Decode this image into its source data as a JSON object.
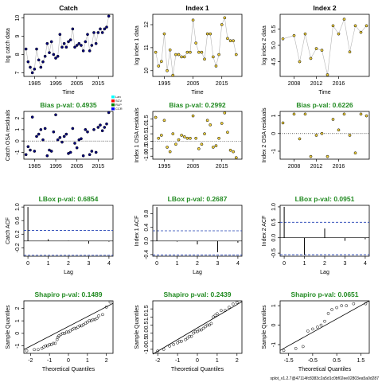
{
  "footer": "splot_v1.2.7@47114fc8383c2a5d1c0bf02ee02803ea5a0d287",
  "chart_data": [
    {
      "type": "scatter",
      "row": 0,
      "col": 0,
      "title": "Catch",
      "title_color": "#000000",
      "xlabel": "Time",
      "ylabel": "log catch data",
      "xlim": [
        1980,
        2022
      ],
      "ylim": [
        6.8,
        10.2
      ],
      "xticks": [
        1985,
        1995,
        2005,
        2015
      ],
      "yticks": [
        7.0,
        8.0,
        9.0,
        10.0
      ],
      "connect": true,
      "point_fill": "#000080",
      "x": [
        1981,
        1982,
        1983,
        1984,
        1985,
        1986,
        1987,
        1988,
        1989,
        1990,
        1991,
        1992,
        1993,
        1994,
        1995,
        1996,
        1997,
        1998,
        1999,
        2000,
        2001,
        2002,
        2003,
        2004,
        2005,
        2006,
        2007,
        2008,
        2009,
        2010,
        2011,
        2012,
        2013,
        2014,
        2015,
        2016,
        2017,
        2018,
        2019,
        2020
      ],
      "y": [
        8.3,
        7.6,
        7.3,
        7.0,
        7.2,
        8.3,
        7.7,
        7.3,
        7.6,
        7.9,
        8.6,
        8.1,
        8.7,
        8.0,
        7.8,
        7.9,
        9.1,
        8.4,
        8.6,
        8.4,
        8.7,
        8.8,
        9.4,
        8.4,
        8.5,
        8.6,
        8.5,
        8.2,
        8.7,
        9.1,
        8.2,
        8.5,
        9.2,
        8.6,
        9.2,
        9.4,
        9.2,
        9.4,
        9.5,
        10.1
      ]
    },
    {
      "type": "scatter",
      "row": 0,
      "col": 1,
      "title": "Index 1",
      "title_color": "#000000",
      "xlabel": "Time",
      "ylabel": "log index 1 data",
      "xlim": [
        1991,
        2022
      ],
      "ylim": [
        9.75,
        12.45
      ],
      "xticks": [
        1995,
        2005,
        2015
      ],
      "yticks": [
        10.0,
        11.0,
        12.0
      ],
      "connect": true,
      "point_fill": "#f2d23c",
      "x": [
        1992,
        1993,
        1994,
        1995,
        1996,
        1997,
        1998,
        1999,
        2000,
        2001,
        2002,
        2003,
        2004,
        2005,
        2006,
        2007,
        2008,
        2009,
        2010,
        2011,
        2012,
        2013,
        2014,
        2015,
        2016,
        2017,
        2018,
        2019,
        2020
      ],
      "y": [
        10.8,
        10.2,
        10.4,
        11.6,
        10.0,
        10.9,
        9.8,
        10.7,
        10.7,
        10.6,
        10.6,
        10.8,
        10.8,
        12.2,
        11.2,
        10.8,
        10.8,
        10.5,
        11.6,
        11.6,
        10.6,
        10.2,
        10.7,
        12.0,
        12.3,
        11.4,
        11.3,
        11.3,
        10.7
      ]
    },
    {
      "type": "scatter",
      "row": 0,
      "col": 2,
      "title": "Index 2",
      "title_color": "#000000",
      "xlabel": "Time",
      "ylabel": "log index 2 data",
      "xlim": [
        2005.5,
        2021.5
      ],
      "ylim": [
        4.05,
        5.95
      ],
      "xticks": [
        2008,
        2012,
        2016
      ],
      "yticks": [
        4.5,
        5.0,
        5.5
      ],
      "connect": true,
      "point_fill": "#f2d23c",
      "x": [
        2006,
        2008,
        2009,
        2010,
        2011,
        2012,
        2013,
        2014,
        2015,
        2016,
        2017,
        2018,
        2019,
        2020,
        2021
      ],
      "y": [
        5.2,
        5.3,
        4.5,
        5.35,
        4.6,
        4.9,
        4.85,
        4.1,
        5.6,
        5.35,
        5.8,
        4.8,
        5.6,
        5.4,
        5.6
      ]
    },
    {
      "type": "scatter",
      "row": 1,
      "col": 0,
      "title": "Bias p-val: 0.4935",
      "title_color": "#228b22",
      "xlabel": "",
      "ylabel": "Catch OSA residuals",
      "xlim": [
        1980,
        2022
      ],
      "ylim": [
        -1.6,
        2.6
      ],
      "xticks": [
        1985,
        1995,
        2005,
        2015
      ],
      "yticks": [
        -1,
        0,
        1,
        2
      ],
      "connect": false,
      "point_fill": "#000080",
      "hline": 0,
      "hline_style": "dotted",
      "legend": [
        "Lan",
        "SCV",
        "RLP",
        "CCR"
      ],
      "legend_colors": [
        "#00ffff",
        "#ff0000",
        "#008000",
        "#0000ff"
      ],
      "x": [
        1981,
        1982,
        1983,
        1984,
        1985,
        1986,
        1987,
        1988,
        1989,
        1990,
        1991,
        1992,
        1993,
        1994,
        1995,
        1996,
        1997,
        1998,
        1999,
        2000,
        2001,
        2002,
        2003,
        2004,
        2005,
        2006,
        2007,
        2008,
        2009,
        2010,
        2011,
        2012,
        2013,
        2014,
        2015,
        2016,
        2017,
        2018,
        2019,
        2020
      ],
      "y": [
        -1.2,
        -0.5,
        -0.8,
        2.1,
        -0.9,
        0.4,
        0.6,
        1.0,
        0.1,
        1.1,
        -1.3,
        -0.8,
        -0.9,
        0.8,
        2.3,
        0.1,
        0.3,
        -0.1,
        0.4,
        0.6,
        -1.1,
        -1.0,
        1.1,
        -0.2,
        -0.6,
        0.1,
        0.2,
        -1.3,
        1.0,
        0.8,
        -1.2,
        -0.9,
        1.0,
        -1.0,
        1.2,
        1.4,
        0.9,
        1.2,
        1.5,
        2.5
      ]
    },
    {
      "type": "scatter",
      "row": 1,
      "col": 1,
      "title": "Bias p-val: 0.2992",
      "title_color": "#228b22",
      "xlabel": "",
      "ylabel": "Index 1 OSA residuals",
      "xlim": [
        1991,
        2022
      ],
      "ylim": [
        -1.2,
        2.0
      ],
      "xticks": [
        1995,
        2005,
        2015
      ],
      "yticks": [
        -1.0,
        -0.5,
        0.0,
        0.5,
        1.0,
        1.5
      ],
      "connect": false,
      "point_fill": "#f2d23c",
      "hline": 0,
      "hline_style": "dotted",
      "x": [
        1992,
        1993,
        1994,
        1995,
        1996,
        1997,
        1998,
        1999,
        2000,
        2001,
        2002,
        2003,
        2004,
        2005,
        2006,
        2007,
        2008,
        2009,
        2010,
        2011,
        2012,
        2013,
        2014,
        2015,
        2016,
        2017,
        2018,
        2019,
        2020
      ],
      "y": [
        1.6,
        0.2,
        0.4,
        1.4,
        -0.4,
        -0.7,
        0.5,
        -0.2,
        0.1,
        0.4,
        0.3,
        0.2,
        0.2,
        1.7,
        0.2,
        -0.5,
        -0.2,
        0.5,
        1.4,
        1.1,
        -0.4,
        -0.3,
        0.2,
        1.2,
        1.9,
        0.6,
        -0.6,
        -0.7,
        -1.1
      ]
    },
    {
      "type": "scatter",
      "row": 1,
      "col": 2,
      "title": "Bias p-val: 0.6226",
      "title_color": "#228b22",
      "xlabel": "",
      "ylabel": "Index 2 OSA residuals",
      "xlim": [
        2005.5,
        2021.5
      ],
      "ylim": [
        -1.45,
        1.25
      ],
      "xticks": [
        2008,
        2012,
        2016
      ],
      "yticks": [
        -1,
        0,
        1
      ],
      "connect": false,
      "point_fill": "#f2d23c",
      "hline": 0,
      "hline_style": "dotted",
      "x": [
        2006,
        2008,
        2009,
        2010,
        2011,
        2012,
        2013,
        2014,
        2015,
        2016,
        2017,
        2018,
        2019,
        2020,
        2021
      ],
      "y": [
        0.6,
        1.1,
        -0.3,
        1.1,
        -1.3,
        -0.1,
        0.0,
        -1.3,
        0.8,
        0.2,
        1.1,
        -0.1,
        -1.1,
        1.1,
        1.0
      ]
    },
    {
      "type": "bar",
      "subtype": "acf",
      "row": 2,
      "col": 0,
      "title": "LBox p-val: 0.6854",
      "title_color": "#228b22",
      "xlabel": "Lag",
      "ylabel": "Catch ACF",
      "xlim": [
        -0.2,
        4.2
      ],
      "ylim": [
        -0.45,
        1.05
      ],
      "xticks": [
        0,
        1,
        2,
        3,
        4
      ],
      "yticks": [
        -0.2,
        0.2,
        0.6,
        1.0
      ],
      "lags": [
        0,
        1,
        2,
        3,
        4
      ],
      "values": [
        1.0,
        0.05,
        0.01,
        -0.08,
        -0.02
      ],
      "ci": [
        0.31,
        -0.42
      ]
    },
    {
      "type": "bar",
      "subtype": "acf",
      "row": 2,
      "col": 1,
      "title": "LBox p-val: 0.2687",
      "title_color": "#228b22",
      "xlabel": "Lag",
      "ylabel": "Index 1 ACF",
      "xlim": [
        -0.2,
        4.2
      ],
      "ylim": [
        -0.45,
        1.05
      ],
      "xticks": [
        0,
        1,
        2,
        3,
        4
      ],
      "yticks": [
        -0.4,
        0.0,
        0.4,
        0.8
      ],
      "lags": [
        0,
        1,
        2,
        3,
        4
      ],
      "values": [
        1.0,
        -0.02,
        -0.1,
        -0.33,
        -0.05
      ],
      "ci": [
        0.3,
        -0.41
      ]
    },
    {
      "type": "bar",
      "subtype": "acf",
      "row": 2,
      "col": 2,
      "title": "LBox p-val: 0.0951",
      "title_color": "#228b22",
      "xlabel": "Lag",
      "ylabel": "Index 2 ACF",
      "xlim": [
        -0.2,
        4.2
      ],
      "ylim": [
        -0.6,
        1.05
      ],
      "xticks": [
        0,
        1,
        2,
        3,
        4
      ],
      "yticks": [
        -0.5,
        0.0,
        0.5,
        1.0
      ],
      "lags": [
        0,
        1,
        2,
        3,
        4
      ],
      "values": [
        1.0,
        -0.55,
        0.3,
        -0.1,
        -0.05
      ],
      "ci": [
        0.5,
        -0.55
      ]
    },
    {
      "type": "scatter",
      "subtype": "qq",
      "row": 3,
      "col": 0,
      "title": "Shapiro p-val: 0.1489",
      "title_color": "#228b22",
      "xlabel": "Theoretical Quantiles",
      "ylabel": "Sample Quantiles",
      "xlim": [
        -2.35,
        2.35
      ],
      "ylim": [
        -1.6,
        2.6
      ],
      "xticks": [
        -2,
        -1,
        0,
        1,
        2
      ],
      "yticks": [
        -1,
        0,
        1,
        2
      ],
      "line": [
        [
          -2.35,
          -1.3
        ],
        [
          2.35,
          2.4
        ]
      ],
      "x": [
        -2.2,
        -1.8,
        -1.6,
        -1.4,
        -1.3,
        -1.2,
        -1.1,
        -1.0,
        -0.9,
        -0.8,
        -0.7,
        -0.6,
        -0.55,
        -0.5,
        -0.4,
        -0.3,
        -0.2,
        -0.1,
        0.0,
        0.1,
        0.2,
        0.3,
        0.4,
        0.5,
        0.6,
        0.7,
        0.8,
        0.9,
        1.0,
        1.1,
        1.2,
        1.3,
        1.4,
        1.5,
        1.6,
        1.8,
        2.0,
        2.2
      ],
      "y": [
        -1.4,
        -1.3,
        -1.3,
        -1.2,
        -1.1,
        -1.0,
        -1.0,
        -0.9,
        -0.9,
        -0.8,
        -0.8,
        -0.5,
        -0.3,
        -0.2,
        -0.1,
        0.0,
        0.0,
        0.1,
        0.1,
        0.2,
        0.3,
        0.4,
        0.4,
        0.5,
        0.6,
        0.6,
        0.7,
        0.8,
        0.9,
        1.0,
        1.0,
        1.1,
        1.1,
        1.2,
        1.4,
        1.5,
        2.1,
        2.5
      ]
    },
    {
      "type": "scatter",
      "subtype": "qq",
      "row": 3,
      "col": 1,
      "title": "Shapiro p-val: 0.2439",
      "title_color": "#228b22",
      "xlabel": "Theoretical Quantiles",
      "ylabel": "Sample Quantiles",
      "xlim": [
        -2.25,
        2.25
      ],
      "ylim": [
        -1.25,
        2.0
      ],
      "xticks": [
        -2,
        -1,
        0,
        1,
        2
      ],
      "yticks": [
        -1.0,
        -0.5,
        0.0,
        0.5,
        1.0,
        1.5
      ],
      "line": [
        [
          -2.25,
          -1.3
        ],
        [
          2.25,
          1.95
        ]
      ],
      "x": [
        -2.0,
        -1.7,
        -1.4,
        -1.2,
        -1.0,
        -0.9,
        -0.8,
        -0.6,
        -0.5,
        -0.4,
        -0.3,
        -0.2,
        -0.1,
        0.0,
        0.1,
        0.2,
        0.3,
        0.4,
        0.5,
        0.6,
        0.7,
        0.8,
        0.9,
        1.0,
        1.2,
        1.4,
        1.6,
        1.8,
        2.0
      ],
      "y": [
        -1.1,
        -1.0,
        -0.8,
        -0.7,
        -0.6,
        -0.5,
        -0.5,
        -0.4,
        -0.3,
        -0.2,
        -0.2,
        0.0,
        0.1,
        0.1,
        0.2,
        0.2,
        0.3,
        0.4,
        0.5,
        0.5,
        0.6,
        1.0,
        1.1,
        1.2,
        1.4,
        1.4,
        1.6,
        1.8,
        1.9
      ]
    },
    {
      "type": "scatter",
      "subtype": "qq",
      "row": 3,
      "col": 2,
      "title": "Shapiro p-val: 0.0651",
      "title_color": "#228b22",
      "xlabel": "Theoretical Quantiles",
      "ylabel": "Sample Quantiles",
      "xlim": [
        -1.85,
        1.85
      ],
      "ylim": [
        -1.45,
        1.25
      ],
      "xticks": [
        -1.5,
        -0.5,
        0.5,
        1.5
      ],
      "yticks": [
        -1.0,
        0.0,
        1.0
      ],
      "line": [
        [
          -1.85,
          -1.3
        ],
        [
          1.85,
          1.25
        ]
      ],
      "x": [
        -1.7,
        -1.2,
        -0.9,
        -0.7,
        -0.5,
        -0.3,
        -0.15,
        0.0,
        0.15,
        0.3,
        0.5,
        0.7,
        0.9,
        1.2,
        1.7
      ],
      "y": [
        -1.3,
        -1.2,
        -1.1,
        -0.3,
        -0.2,
        -0.1,
        0.0,
        0.2,
        0.6,
        0.8,
        0.9,
        1.0,
        1.0,
        1.1,
        1.1
      ]
    }
  ]
}
